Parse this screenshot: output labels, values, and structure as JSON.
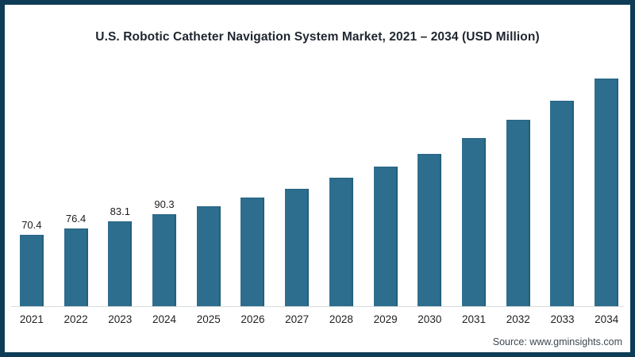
{
  "page": {
    "title": "U.S. Robotic Catheter Navigation System Market, 2021 – 2034 (USD Million)",
    "source_text": "Source: www.gminsights.com"
  },
  "colors": {
    "bar_fill": "#2d6d8e",
    "bar_edge": "#24607e",
    "frame_border": "#0e3c57",
    "axis_line": "#d8dcdd",
    "title_text": "#1f2630",
    "label_text": "#1c1c1c"
  },
  "chart_data": {
    "type": "bar",
    "title": "U.S. Robotic Catheter Navigation System Market, 2021 – 2034 (USD Million)",
    "unit": "USD Million",
    "categories": [
      "2021",
      "2022",
      "2023",
      "2024",
      "2025",
      "2026",
      "2027",
      "2028",
      "2029",
      "2030",
      "2031",
      "2032",
      "2033",
      "2034"
    ],
    "values": [
      70.4,
      76.4,
      83.1,
      90.3,
      98.0,
      106.4,
      114.9,
      125.9,
      137.0,
      149.2,
      164.8,
      183.0,
      201.6,
      223.6
    ],
    "data_labels": [
      "70.4",
      "76.4",
      "83.1",
      "90.3",
      "",
      "",
      "",
      "",
      "",
      "",
      "",
      "",
      "",
      ""
    ],
    "xlabel": "",
    "ylabel": "",
    "ylim": [
      0,
      240
    ],
    "grid": false,
    "legend_position": "none",
    "source": "Source: www.gminsights.com"
  }
}
